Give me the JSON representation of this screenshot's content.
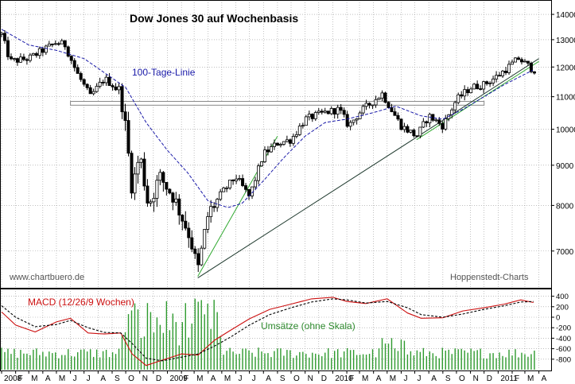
{
  "chart_data": [
    {
      "type": "candlestick",
      "title": "Dow Jones 30 auf Wochenbasis",
      "scale": "log",
      "ylim": [
        6300,
        14500
      ],
      "yticks": [
        7000,
        8000,
        9000,
        10000,
        11000,
        12000,
        13000,
        14000
      ],
      "ytick_labels": [
        "7000",
        "8000",
        "9000",
        "10000",
        "11000",
        "12000",
        "13000",
        "14000"
      ],
      "ma_label": "100-Tage-Linie",
      "watermark_left": "www.chartbuero.de",
      "watermark_right": "Hoppenstedt-Charts",
      "resistance_band": {
        "low": 10730,
        "high": 10850,
        "x_from": "2008-06",
        "x_to": "2010-12"
      },
      "trendlines": [
        {
          "from": [
            "2009-03-09",
            6470
          ],
          "to": [
            "2011-04-01",
            12300
          ]
        },
        {
          "from": [
            "2009-03-09",
            6500
          ],
          "to": [
            "2009-09-01",
            9800
          ]
        },
        {
          "from": [
            "2010-07-05",
            9700
          ],
          "to": [
            "2011-04-01",
            12200
          ]
        }
      ],
      "weekly_close_anchors": [
        {
          "x": "2008-01-01",
          "y": 13200
        },
        {
          "x": "2008-01-20",
          "y": 12200
        },
        {
          "x": "2008-03-01",
          "y": 12300
        },
        {
          "x": "2008-04-01",
          "y": 12600
        },
        {
          "x": "2008-05-01",
          "y": 12900
        },
        {
          "x": "2008-05-20",
          "y": 12800
        },
        {
          "x": "2008-06-15",
          "y": 11800
        },
        {
          "x": "2008-07-15",
          "y": 11000
        },
        {
          "x": "2008-08-15",
          "y": 11600
        },
        {
          "x": "2008-09-01",
          "y": 11400
        },
        {
          "x": "2008-09-20",
          "y": 11100
        },
        {
          "x": "2008-10-01",
          "y": 10000
        },
        {
          "x": "2008-10-15",
          "y": 8400
        },
        {
          "x": "2008-11-01",
          "y": 9300
        },
        {
          "x": "2008-11-20",
          "y": 8000
        },
        {
          "x": "2008-12-15",
          "y": 8700
        },
        {
          "x": "2009-01-15",
          "y": 8200
        },
        {
          "x": "2009-02-20",
          "y": 7300
        },
        {
          "x": "2009-03-09",
          "y": 6600
        },
        {
          "x": "2009-04-01",
          "y": 7800
        },
        {
          "x": "2009-05-01",
          "y": 8300
        },
        {
          "x": "2009-06-01",
          "y": 8700
        },
        {
          "x": "2009-07-01",
          "y": 8200
        },
        {
          "x": "2009-08-01",
          "y": 9300
        },
        {
          "x": "2009-09-01",
          "y": 9600
        },
        {
          "x": "2009-10-01",
          "y": 9700
        },
        {
          "x": "2009-11-01",
          "y": 10300
        },
        {
          "x": "2009-12-15",
          "y": 10500
        },
        {
          "x": "2010-01-15",
          "y": 10600
        },
        {
          "x": "2010-02-05",
          "y": 10100
        },
        {
          "x": "2010-03-01",
          "y": 10500
        },
        {
          "x": "2010-04-20",
          "y": 11100
        },
        {
          "x": "2010-05-10",
          "y": 10600
        },
        {
          "x": "2010-06-01",
          "y": 10100
        },
        {
          "x": "2010-07-05",
          "y": 9800
        },
        {
          "x": "2010-08-01",
          "y": 10400
        },
        {
          "x": "2010-09-01",
          "y": 10100
        },
        {
          "x": "2010-10-01",
          "y": 10900
        },
        {
          "x": "2010-11-01",
          "y": 11300
        },
        {
          "x": "2010-12-01",
          "y": 11400
        },
        {
          "x": "2011-01-01",
          "y": 11700
        },
        {
          "x": "2011-02-15",
          "y": 12300
        },
        {
          "x": "2011-03-20",
          "y": 11900
        }
      ],
      "ma_anchors": [
        {
          "x": "2008-01-01",
          "y": 13400
        },
        {
          "x": "2008-03-01",
          "y": 12800
        },
        {
          "x": "2008-05-01",
          "y": 12600
        },
        {
          "x": "2008-07-01",
          "y": 12300
        },
        {
          "x": "2008-08-15",
          "y": 11800
        },
        {
          "x": "2008-10-01",
          "y": 11300
        },
        {
          "x": "2008-11-15",
          "y": 10200
        },
        {
          "x": "2009-01-01",
          "y": 9400
        },
        {
          "x": "2009-02-15",
          "y": 8800
        },
        {
          "x": "2009-04-01",
          "y": 8100
        },
        {
          "x": "2009-05-15",
          "y": 7950
        },
        {
          "x": "2009-06-15",
          "y": 8050
        },
        {
          "x": "2009-08-01",
          "y": 8600
        },
        {
          "x": "2009-09-15",
          "y": 9200
        },
        {
          "x": "2009-11-01",
          "y": 9800
        },
        {
          "x": "2009-12-15",
          "y": 10200
        },
        {
          "x": "2010-02-01",
          "y": 10300
        },
        {
          "x": "2010-04-01",
          "y": 10500
        },
        {
          "x": "2010-05-20",
          "y": 10700
        },
        {
          "x": "2010-07-15",
          "y": 10400
        },
        {
          "x": "2010-09-01",
          "y": 10300
        },
        {
          "x": "2010-10-15",
          "y": 10600
        },
        {
          "x": "2010-12-01",
          "y": 11000
        },
        {
          "x": "2011-01-15",
          "y": 11400
        },
        {
          "x": "2011-03-20",
          "y": 11900
        }
      ]
    },
    {
      "type": "line",
      "title": "MACD (12/26/9 Wochen)",
      "volume_label": "Umsätze (ohne Skala)",
      "ylim": [
        -1000,
        500
      ],
      "yticks": [
        -800,
        -600,
        -400,
        -200,
        0,
        200,
        400
      ],
      "ytick_labels": [
        "-800",
        "-600",
        "-400",
        "-200",
        "0",
        "200",
        "400"
      ],
      "series": [
        {
          "style": "solid-red",
          "points": [
            [
              "2008-01-01",
              100
            ],
            [
              "2008-02-01",
              -150
            ],
            [
              "2008-03-15",
              -280
            ],
            [
              "2008-05-01",
              -90
            ],
            [
              "2008-06-01",
              -20
            ],
            [
              "2008-07-10",
              -300
            ],
            [
              "2008-08-15",
              -320
            ],
            [
              "2008-09-20",
              -300
            ],
            [
              "2008-10-15",
              -700
            ],
            [
              "2008-11-15",
              -920
            ],
            [
              "2008-12-20",
              -820
            ],
            [
              "2009-02-01",
              -700
            ],
            [
              "2009-03-10",
              -720
            ],
            [
              "2009-04-15",
              -440
            ],
            [
              "2009-05-20",
              -250
            ],
            [
              "2009-07-01",
              -30
            ],
            [
              "2009-08-15",
              150
            ],
            [
              "2009-10-01",
              250
            ],
            [
              "2009-11-15",
              350
            ],
            [
              "2010-01-01",
              380
            ],
            [
              "2010-02-01",
              300
            ],
            [
              "2010-03-15",
              260
            ],
            [
              "2010-05-01",
              350
            ],
            [
              "2010-06-15",
              80
            ],
            [
              "2010-07-15",
              -20
            ],
            [
              "2010-09-01",
              -10
            ],
            [
              "2010-10-15",
              120
            ],
            [
              "2010-12-01",
              180
            ],
            [
              "2011-01-15",
              250
            ],
            [
              "2011-02-20",
              330
            ],
            [
              "2011-03-20",
              280
            ]
          ]
        },
        {
          "style": "dashed-black",
          "points": [
            [
              "2008-01-01",
              220
            ],
            [
              "2008-02-01",
              0
            ],
            [
              "2008-03-15",
              -180
            ],
            [
              "2008-05-01",
              -140
            ],
            [
              "2008-06-01",
              -60
            ],
            [
              "2008-07-10",
              -200
            ],
            [
              "2008-08-15",
              -290
            ],
            [
              "2008-09-20",
              -300
            ],
            [
              "2008-10-15",
              -500
            ],
            [
              "2008-11-15",
              -780
            ],
            [
              "2008-12-20",
              -830
            ],
            [
              "2009-02-01",
              -760
            ],
            [
              "2009-03-10",
              -700
            ],
            [
              "2009-04-15",
              -550
            ],
            [
              "2009-05-20",
              -380
            ],
            [
              "2009-07-01",
              -150
            ],
            [
              "2009-08-15",
              50
            ],
            [
              "2009-10-01",
              180
            ],
            [
              "2009-11-15",
              290
            ],
            [
              "2010-01-01",
              350
            ],
            [
              "2010-02-01",
              330
            ],
            [
              "2010-03-15",
              270
            ],
            [
              "2010-05-01",
              300
            ],
            [
              "2010-06-15",
              180
            ],
            [
              "2010-07-15",
              50
            ],
            [
              "2010-09-01",
              0
            ],
            [
              "2010-10-15",
              60
            ],
            [
              "2010-12-01",
              150
            ],
            [
              "2011-01-15",
              220
            ],
            [
              "2011-02-20",
              290
            ],
            [
              "2011-03-20",
              300
            ]
          ]
        }
      ],
      "volume_scale": "none"
    }
  ],
  "x_axis": {
    "labels": [
      "2008",
      "F",
      "M",
      "A",
      "M",
      "J",
      "J",
      "A",
      "S",
      "O",
      "N",
      "D",
      "2009",
      "F",
      "M",
      "A",
      "M",
      "J",
      "J",
      "A",
      "S",
      "O",
      "N",
      "D",
      "2010",
      "F",
      "M",
      "A",
      "M",
      "J",
      "J",
      "A",
      "S",
      "O",
      "N",
      "D",
      "2011",
      "F",
      "M",
      "A"
    ],
    "start": "2008-01-01"
  },
  "colors": {
    "candle": "#000000",
    "ma": "#1a1aa8",
    "trend_dark": "#1f3a2e",
    "trend_green": "#33aa33",
    "band": "#888888",
    "macd": "#cc1111",
    "signal": "#000000",
    "volume": "#2e9a2e",
    "grid": "#999999",
    "title": "#000000",
    "ma_text": "#1a1aa8",
    "macd_text": "#cc1111",
    "volume_text": "#2e8a2e",
    "watermark": "#555555"
  }
}
